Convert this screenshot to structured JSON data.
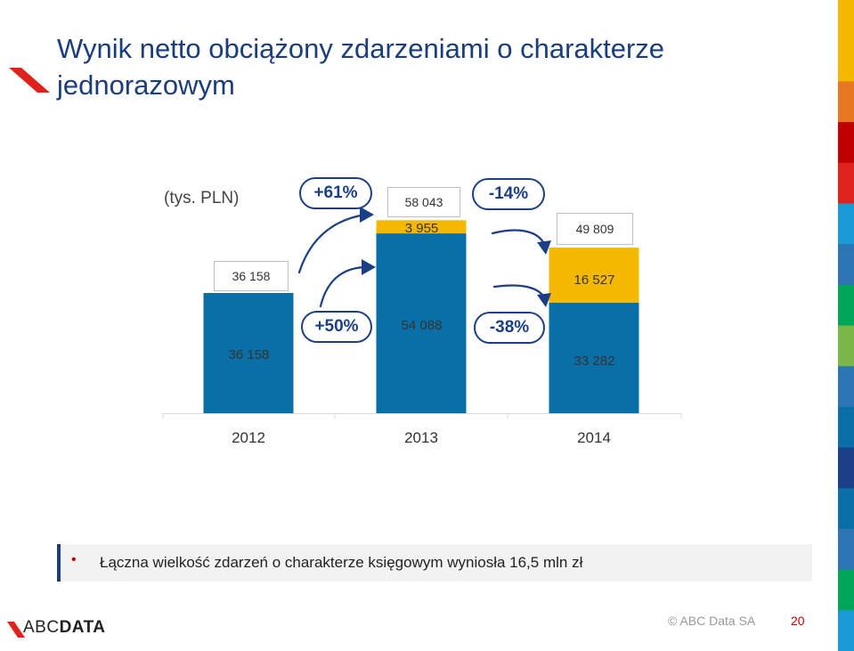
{
  "title": "Wynik netto obciążony zdarzeniami o charakterze jednorazowym",
  "unit": "(tys. PLN)",
  "colors": {
    "blue": "#0a6fa6",
    "yellow": "#f5b800",
    "navy": "#1b3f86",
    "red": "#e0221d"
  },
  "chart_data": {
    "type": "bar",
    "stacked": true,
    "categories": [
      "2012",
      "2013",
      "2014"
    ],
    "series": [
      {
        "values": [
          36158,
          54088,
          33282
        ],
        "labels": [
          "36 158",
          "54 088",
          "33 282"
        ],
        "color": "#0a6fa6"
      },
      {
        "values": [
          0,
          3955,
          16527
        ],
        "labels": [
          "",
          "3 955",
          "16 527"
        ],
        "color": "#f5b800"
      }
    ],
    "totals": [
      36158,
      58043,
      49809
    ],
    "total_labels": [
      "36 158",
      "58 043",
      "49 809"
    ],
    "changes_total": [
      "+61%",
      "-14%"
    ],
    "changes_base": [
      "+50%",
      "-38%"
    ],
    "ylim": [
      0,
      60000
    ]
  },
  "note": "Łączna wielkość zdarzeń o charakterze księgowym wyniosła 16,5 mln zł",
  "footer": {
    "logo_prefix": "ABC",
    "logo_suffix": "DATA",
    "copyright": "© ABC Data SA",
    "page": "20"
  }
}
